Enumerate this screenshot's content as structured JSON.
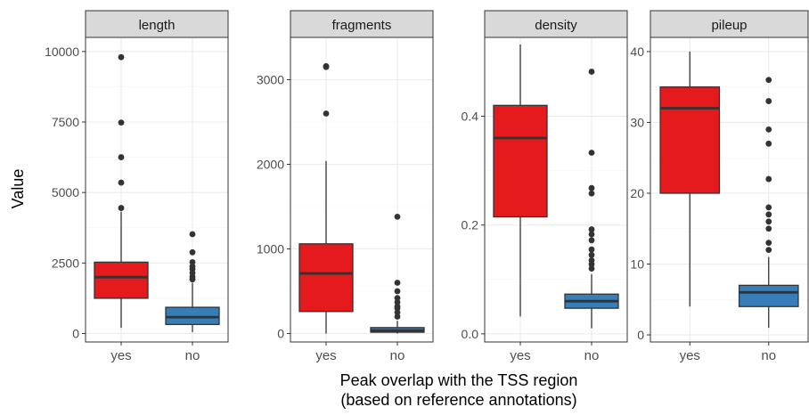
{
  "figure": {
    "ylabel": "Value",
    "xlabel_line1": "Peak overlap with the TSS region",
    "xlabel_line2": "(based on reference annotations)"
  },
  "colors": {
    "yes": "#E41A1C",
    "no": "#377EB8",
    "strip_bg": "#D9D9D9",
    "grid": "#EBEBEB",
    "axis_text": "#4D4D4D"
  },
  "chart_data": {
    "type": "boxplot",
    "facet_layout": "1 row, free y scales",
    "grid": true,
    "categories": [
      "yes",
      "no"
    ],
    "panels": [
      {
        "strip_label": "length",
        "ylim": [
          -300,
          10500
        ],
        "yticks": [
          0,
          2500,
          5000,
          7500,
          10000
        ],
        "ytick_labels": [
          "0",
          "2500",
          "5000",
          "7500",
          "10000"
        ],
        "boxes": [
          {
            "category": "yes",
            "q1": 1250,
            "median": 2000,
            "q3": 2530,
            "whisker_low": 200,
            "whisker_high": 4320,
            "outliers": [
              9800,
              7480,
              6250,
              5350,
              4450
            ]
          },
          {
            "category": "no",
            "q1": 320,
            "median": 580,
            "q3": 930,
            "whisker_low": 50,
            "whisker_high": 1800,
            "outliers": [
              3520,
              2880,
              2530,
              2380,
              2280,
              2150,
              2020,
              1920
            ]
          }
        ]
      },
      {
        "strip_label": "fragments",
        "ylim": [
          -100,
          3500
        ],
        "yticks": [
          0,
          1000,
          2000,
          3000
        ],
        "ytick_labels": [
          "0",
          "1000",
          "2000",
          "3000"
        ],
        "boxes": [
          {
            "category": "yes",
            "q1": 260,
            "median": 710,
            "q3": 1060,
            "whisker_low": 0,
            "whisker_high": 2040,
            "outliers": [
              3160,
              3150,
              2600
            ]
          },
          {
            "category": "no",
            "q1": 15,
            "median": 35,
            "q3": 70,
            "whisker_low": 0,
            "whisker_high": 150,
            "outliers": [
              1380,
              600,
              500,
              420,
              370,
              320,
              300,
              250,
              200
            ]
          }
        ]
      },
      {
        "strip_label": "density",
        "ylim": [
          -0.015,
          0.545
        ],
        "yticks": [
          0.0,
          0.2,
          0.4
        ],
        "ytick_labels": [
          "0.0",
          "0.2",
          "0.4"
        ],
        "boxes": [
          {
            "category": "yes",
            "q1": 0.215,
            "median": 0.36,
            "q3": 0.42,
            "whisker_low": 0.032,
            "whisker_high": 0.532,
            "outliers": []
          },
          {
            "category": "no",
            "q1": 0.047,
            "median": 0.06,
            "q3": 0.073,
            "whisker_low": 0.01,
            "whisker_high": 0.11,
            "outliers": [
              0.482,
              0.333,
              0.268,
              0.258,
              0.192,
              0.183,
              0.172,
              0.155,
              0.145,
              0.135,
              0.128,
              0.12
            ]
          }
        ]
      },
      {
        "strip_label": "pileup",
        "ylim": [
          -1,
          42
        ],
        "yticks": [
          0,
          10,
          20,
          30,
          40
        ],
        "ytick_labels": [
          "0",
          "10",
          "20",
          "30",
          "40"
        ],
        "boxes": [
          {
            "category": "yes",
            "q1": 20,
            "median": 32,
            "q3": 35,
            "whisker_low": 4,
            "whisker_high": 40,
            "outliers": []
          },
          {
            "category": "no",
            "q1": 4,
            "median": 6,
            "q3": 7,
            "whisker_low": 1,
            "whisker_high": 11,
            "outliers": [
              36,
              33,
              29,
              27,
              22,
              18,
              17,
              16,
              15,
              13,
              12
            ]
          }
        ]
      }
    ]
  }
}
